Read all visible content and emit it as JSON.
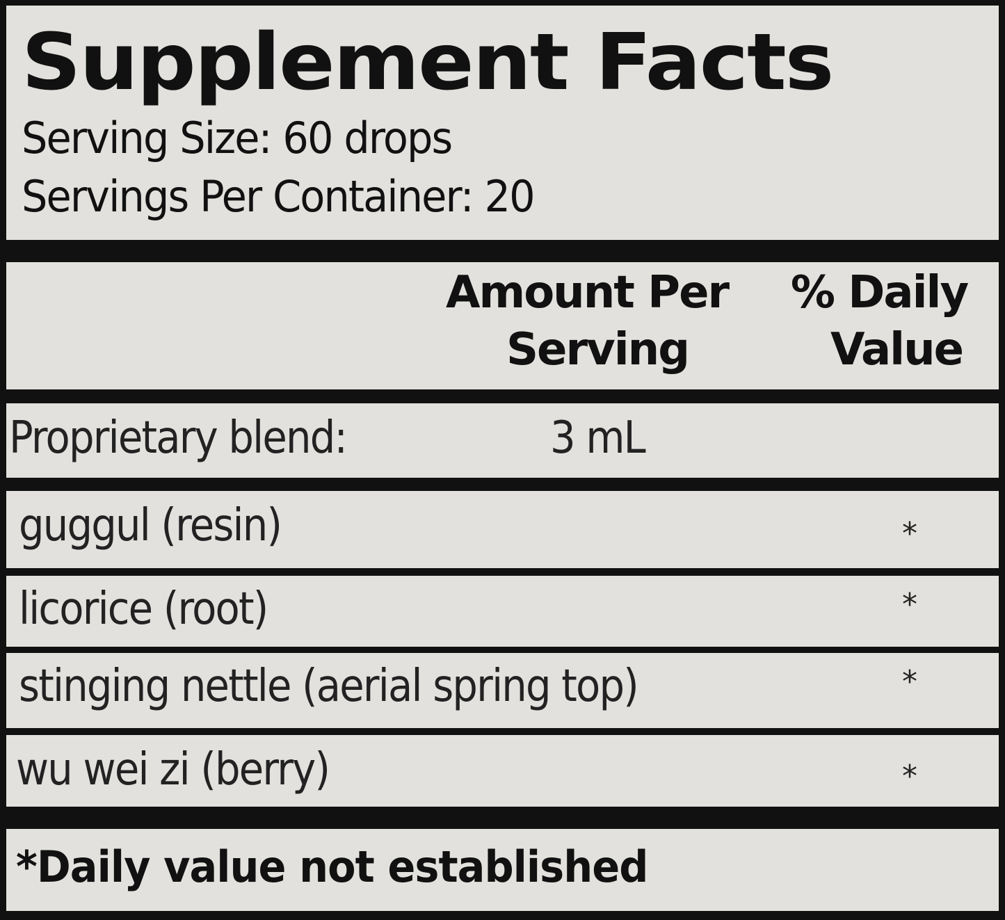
{
  "title": "Supplement Facts",
  "serving_size": "Serving Size: 60 drops",
  "servings_per_container": "Servings Per Container: 20",
  "header": {
    "amount_line1": "Amount Per",
    "amount_line2": "Serving",
    "dv_line1": "% Daily",
    "dv_line2": "Value"
  },
  "blend": {
    "label": "Proprietary blend:",
    "amount": "3 mL"
  },
  "ingredients": [
    {
      "name": "guggul (resin)",
      "dv": "*"
    },
    {
      "name": "licorice (root)",
      "dv": "*"
    },
    {
      "name": "stinging nettle (aerial spring top)",
      "dv": "*"
    },
    {
      "name": "wu wei zi (berry)",
      "dv": "*"
    }
  ],
  "footnote": "*Daily value not established"
}
